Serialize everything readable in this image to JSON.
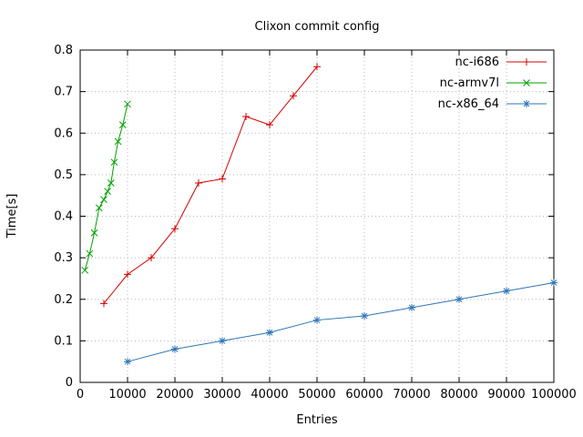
{
  "chart_data": {
    "type": "line",
    "title": "Clixon commit config",
    "xlabel": "Entries",
    "ylabel": "Time[s]",
    "xlim": [
      0,
      100000
    ],
    "ylim": [
      0,
      0.8
    ],
    "xtick_step": 10000,
    "ytick_step": 0.1,
    "grid": true,
    "legend_position": "top-right",
    "colors": {
      "axis": "#000000",
      "grid": "#b8b8b8"
    },
    "series": [
      {
        "name": "nc-i686",
        "color": "#d40000",
        "marker": "plus",
        "points": [
          [
            5000,
            0.19
          ],
          [
            10000,
            0.26
          ],
          [
            15000,
            0.3
          ],
          [
            20000,
            0.37
          ],
          [
            25000,
            0.48
          ],
          [
            30000,
            0.49
          ],
          [
            35000,
            0.64
          ],
          [
            40000,
            0.62
          ],
          [
            45000,
            0.69
          ],
          [
            50000,
            0.76
          ]
        ]
      },
      {
        "name": "nc-armv7l",
        "color": "#00a000",
        "marker": "x",
        "points": [
          [
            1000,
            0.27
          ],
          [
            2000,
            0.31
          ],
          [
            3000,
            0.36
          ],
          [
            4000,
            0.42
          ],
          [
            5000,
            0.44
          ],
          [
            5800,
            0.46
          ],
          [
            6500,
            0.48
          ],
          [
            7200,
            0.53
          ],
          [
            8000,
            0.58
          ],
          [
            9000,
            0.62
          ],
          [
            10000,
            0.67
          ]
        ]
      },
      {
        "name": "nc-x86_64",
        "color": "#2e75b6",
        "marker": "asterisk",
        "points": [
          [
            10000,
            0.05
          ],
          [
            20000,
            0.08
          ],
          [
            30000,
            0.1
          ],
          [
            40000,
            0.12
          ],
          [
            50000,
            0.15
          ],
          [
            60000,
            0.16
          ],
          [
            70000,
            0.18
          ],
          [
            80000,
            0.2
          ],
          [
            90000,
            0.22
          ],
          [
            100000,
            0.24
          ]
        ]
      }
    ]
  }
}
